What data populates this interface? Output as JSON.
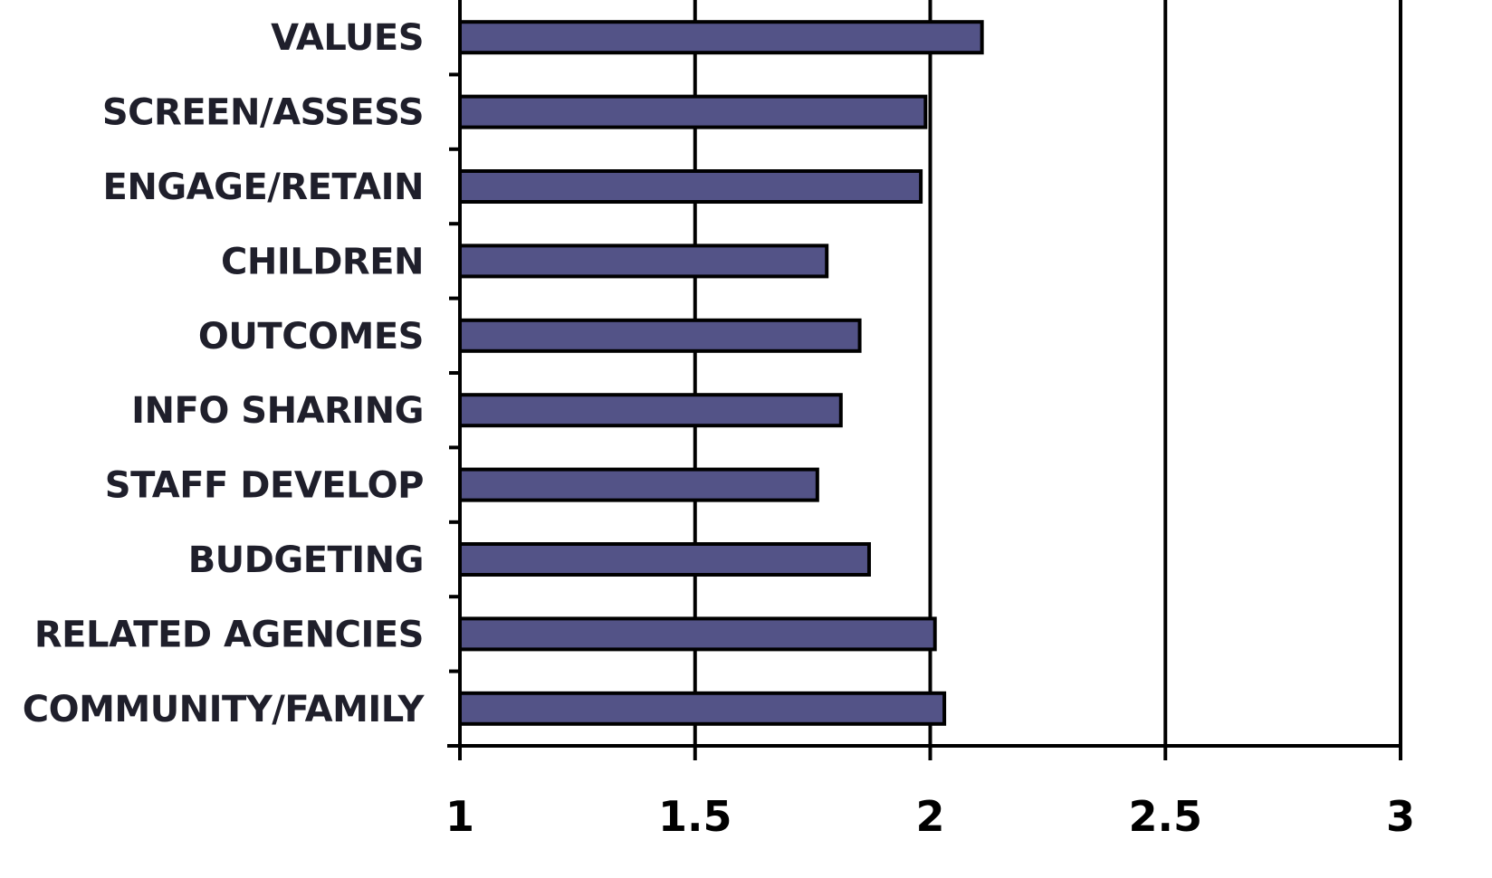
{
  "chart_data": {
    "type": "bar",
    "orientation": "horizontal",
    "categories": [
      "VALUES",
      "SCREEN/ASSESS",
      "ENGAGE/RETAIN",
      "CHILDREN",
      "OUTCOMES",
      "INFO SHARING",
      "STAFF DEVELOP",
      "BUDGETING",
      "RELATED AGENCIES",
      "COMMUNITY/FAMILY"
    ],
    "values": [
      2.11,
      1.99,
      1.98,
      1.78,
      1.85,
      1.81,
      1.76,
      1.87,
      2.01,
      2.03
    ],
    "xlim": [
      1,
      3
    ],
    "xticks": [
      1,
      1.5,
      2,
      2.5,
      3
    ],
    "xtick_labels": [
      "1",
      "1.5",
      "2",
      "2.5",
      "3"
    ],
    "title": "",
    "xlabel": "",
    "ylabel": "",
    "grid": "vertical",
    "legend": "none",
    "bar_color": "#535387",
    "edge_color": "#000000"
  }
}
